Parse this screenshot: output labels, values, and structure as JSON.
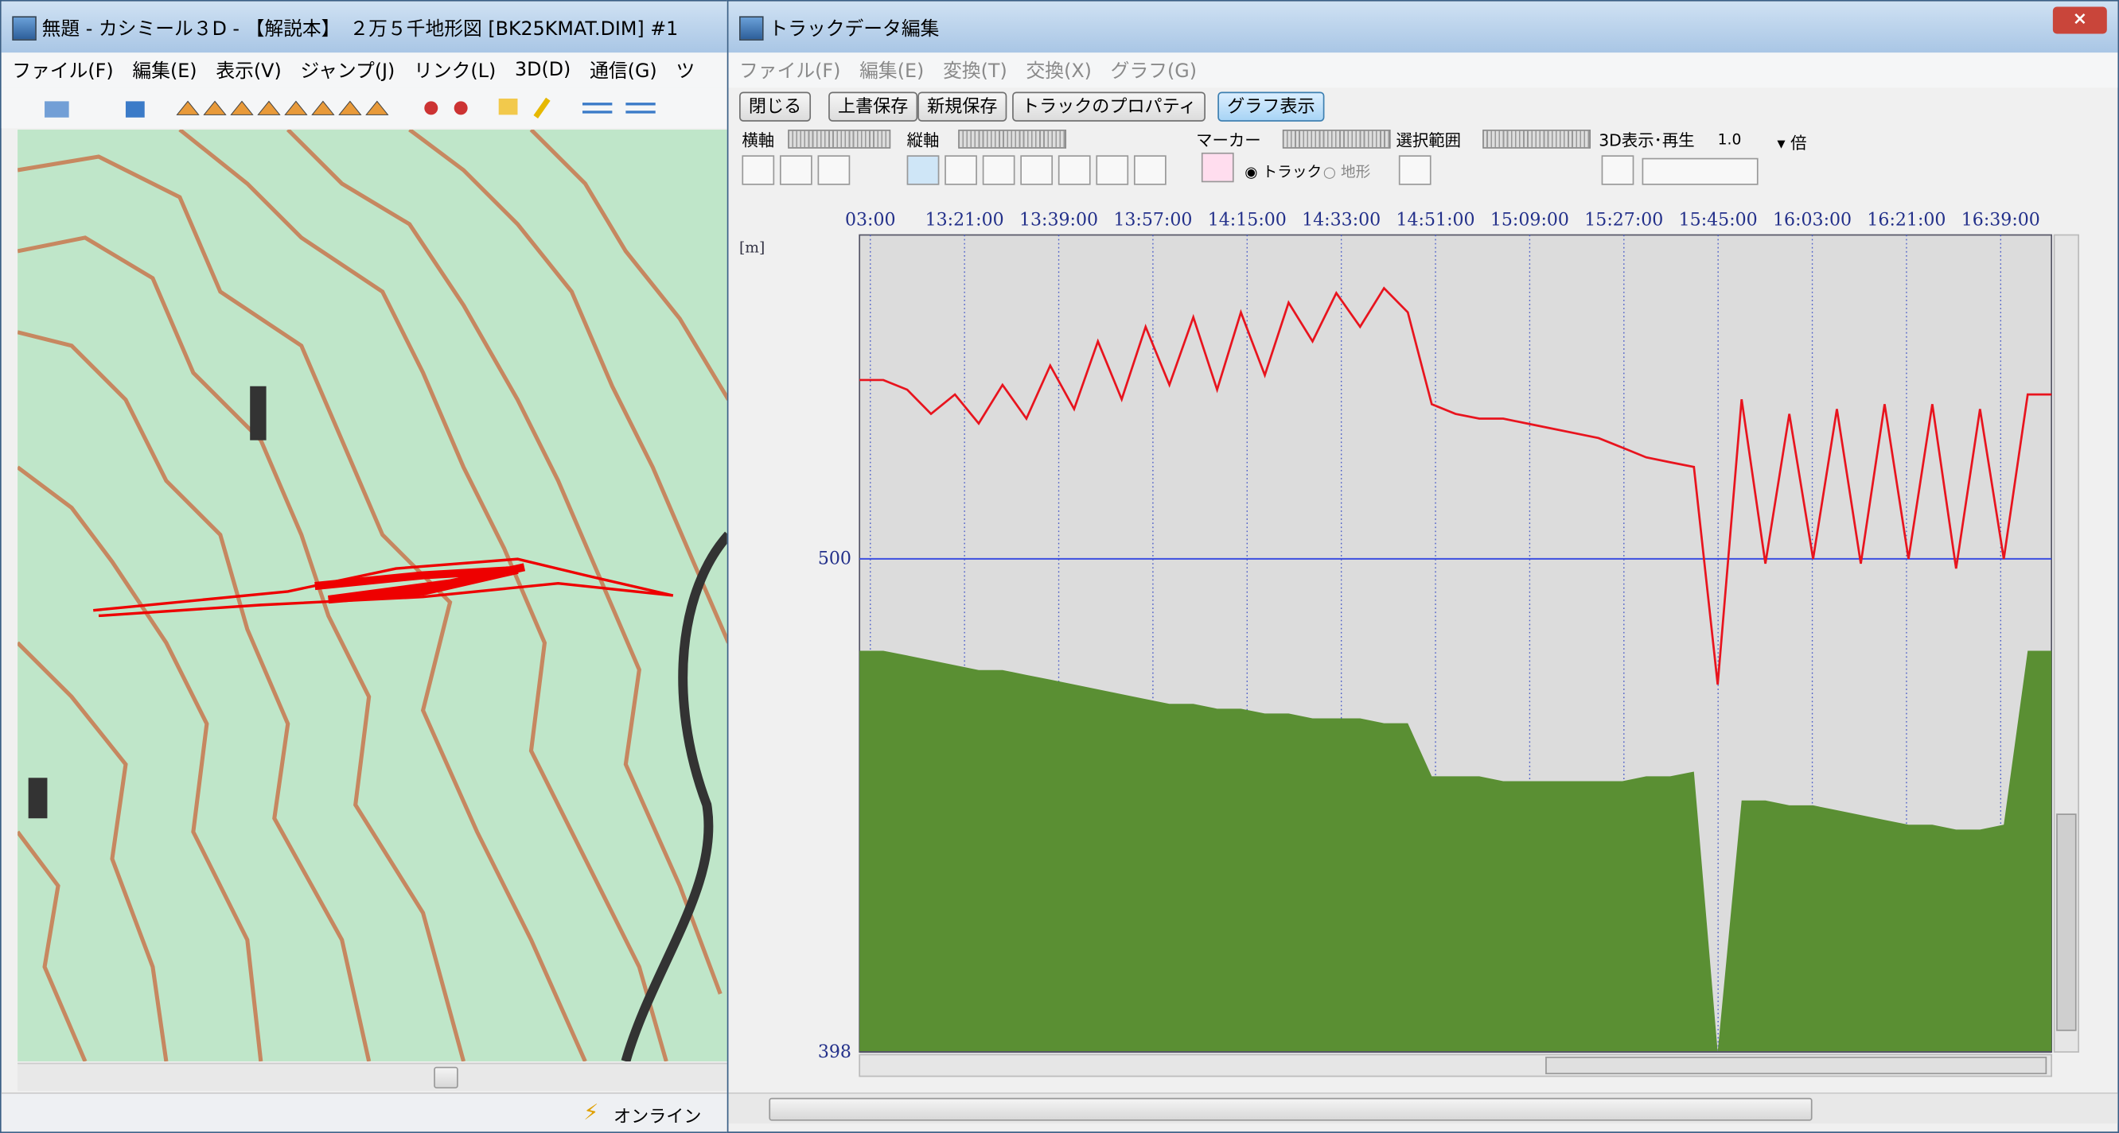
{
  "map_window": {
    "title": "無題 - カシミール３D - 【解説本】　２万５千地形図 [BK25KMAT.DIM] #1",
    "menu": [
      "ファイル(F)",
      "編集(E)",
      "表示(V)",
      "ジャンプ(J)",
      "リンク(L)",
      "3D(D)",
      "通信(G)",
      "ツ"
    ],
    "status": "オンライン"
  },
  "track_window": {
    "title": "トラックデータ編集",
    "menu": [
      "ファイル(F)",
      "編集(E)",
      "変換(T)",
      "交換(X)",
      "グラフ(G)"
    ],
    "buttons": [
      "閉じる",
      "上書保存",
      "新規保存",
      "トラックのプロパティ",
      "グラフ表示"
    ],
    "toolbar_labels": [
      "横軸",
      "縦軸",
      "マーカー",
      "選択範囲",
      "3D表示･再生"
    ],
    "speed": "1.0",
    "speed_unit": "倍",
    "radio": [
      "トラック",
      "地形"
    ],
    "graph": {
      "y_unit": "[m]",
      "xticks": [
        "03:00",
        "13:21:00",
        "13:39:00",
        "13:57:00",
        "14:15:00",
        "14:33:00",
        "14:51:00",
        "15:09:00",
        "15:27:00",
        "15:45:00",
        "16:03:00",
        "16:21:00",
        "16:39:00"
      ],
      "ylim": [
        398,
        567
      ],
      "yticks": [
        398,
        500
      ],
      "track": [
        537,
        537,
        535,
        530,
        534,
        528,
        536,
        529,
        540,
        531,
        545,
        533,
        548,
        536,
        550,
        535,
        551,
        538,
        553,
        545,
        555,
        548,
        556,
        551,
        532,
        530,
        529,
        529,
        528,
        527,
        526,
        525,
        523,
        521,
        520,
        519,
        474,
        533,
        499,
        530,
        500,
        531,
        499,
        532,
        500,
        532,
        498,
        531,
        500,
        534,
        534
      ],
      "terrain": [
        481,
        481,
        480,
        479,
        478,
        477,
        477,
        476,
        475,
        474,
        473,
        472,
        471,
        470,
        470,
        469,
        469,
        468,
        468,
        467,
        467,
        467,
        466,
        466,
        455,
        455,
        455,
        454,
        454,
        454,
        454,
        454,
        454,
        455,
        455,
        456,
        398,
        450,
        450,
        449,
        449,
        448,
        447,
        446,
        445,
        445,
        444,
        444,
        445,
        481,
        481
      ]
    }
  }
}
